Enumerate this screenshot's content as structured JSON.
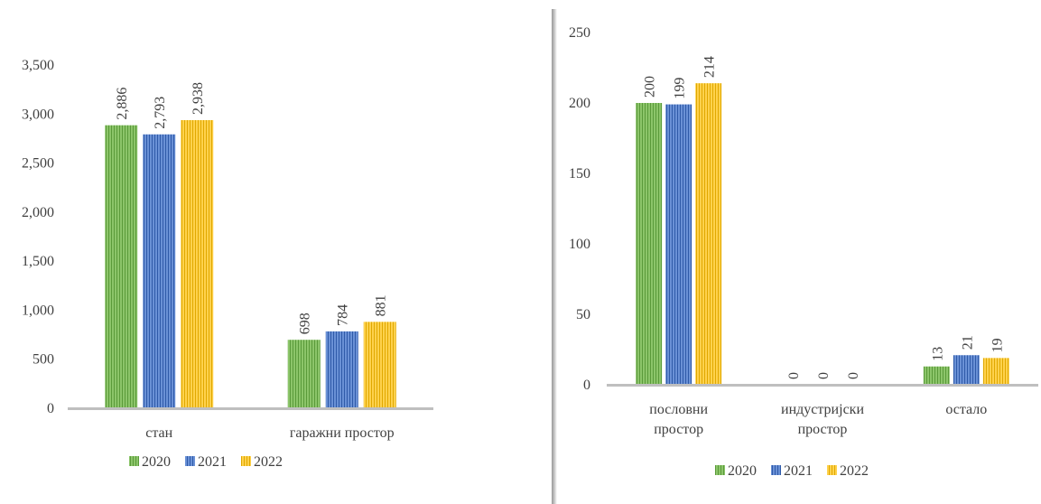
{
  "colors": {
    "2020": "#70ad47",
    "2021": "#4472c4",
    "2022": "#ffc000"
  },
  "chart_data": [
    {
      "type": "bar",
      "title": "",
      "xlabel": "",
      "ylabel": "",
      "categories": [
        [
          "стан"
        ],
        [
          "гаражни простор"
        ]
      ],
      "series": [
        {
          "name": "2020",
          "values": [
            2886,
            698
          ],
          "labels": [
            "2,886",
            "698"
          ]
        },
        {
          "name": "2021",
          "values": [
            2793,
            784
          ],
          "labels": [
            "2,793",
            "784"
          ]
        },
        {
          "name": "2022",
          "values": [
            2938,
            881
          ],
          "labels": [
            "2,938",
            "881"
          ]
        }
      ],
      "ylim": [
        0,
        3500
      ],
      "yticks": [
        0,
        500,
        1000,
        1500,
        2000,
        2500,
        3000,
        3500
      ],
      "ytick_labels": [
        "0",
        "500",
        "1,000",
        "1,500",
        "2,000",
        "2,500",
        "3,000",
        "3,500"
      ],
      "grid": false,
      "legend": {
        "position": "bottom",
        "entries": [
          "2020",
          "2021",
          "2022"
        ]
      }
    },
    {
      "type": "bar",
      "title": "",
      "xlabel": "",
      "ylabel": "",
      "categories": [
        [
          "пословни",
          "простор"
        ],
        [
          "индустријски",
          "простор"
        ],
        [
          "остало"
        ]
      ],
      "series": [
        {
          "name": "2020",
          "values": [
            200,
            0,
            13
          ],
          "labels": [
            "200",
            "0",
            "13"
          ]
        },
        {
          "name": "2021",
          "values": [
            199,
            0,
            21
          ],
          "labels": [
            "199",
            "0",
            "21"
          ]
        },
        {
          "name": "2022",
          "values": [
            214,
            0,
            19
          ],
          "labels": [
            "214",
            "0",
            "19"
          ]
        }
      ],
      "ylim": [
        0,
        250
      ],
      "yticks": [
        0,
        50,
        100,
        150,
        200,
        250
      ],
      "ytick_labels": [
        "0",
        "50",
        "100",
        "150",
        "200",
        "250"
      ],
      "grid": false,
      "legend": {
        "position": "bottom",
        "entries": [
          "2020",
          "2021",
          "2022"
        ]
      }
    }
  ]
}
